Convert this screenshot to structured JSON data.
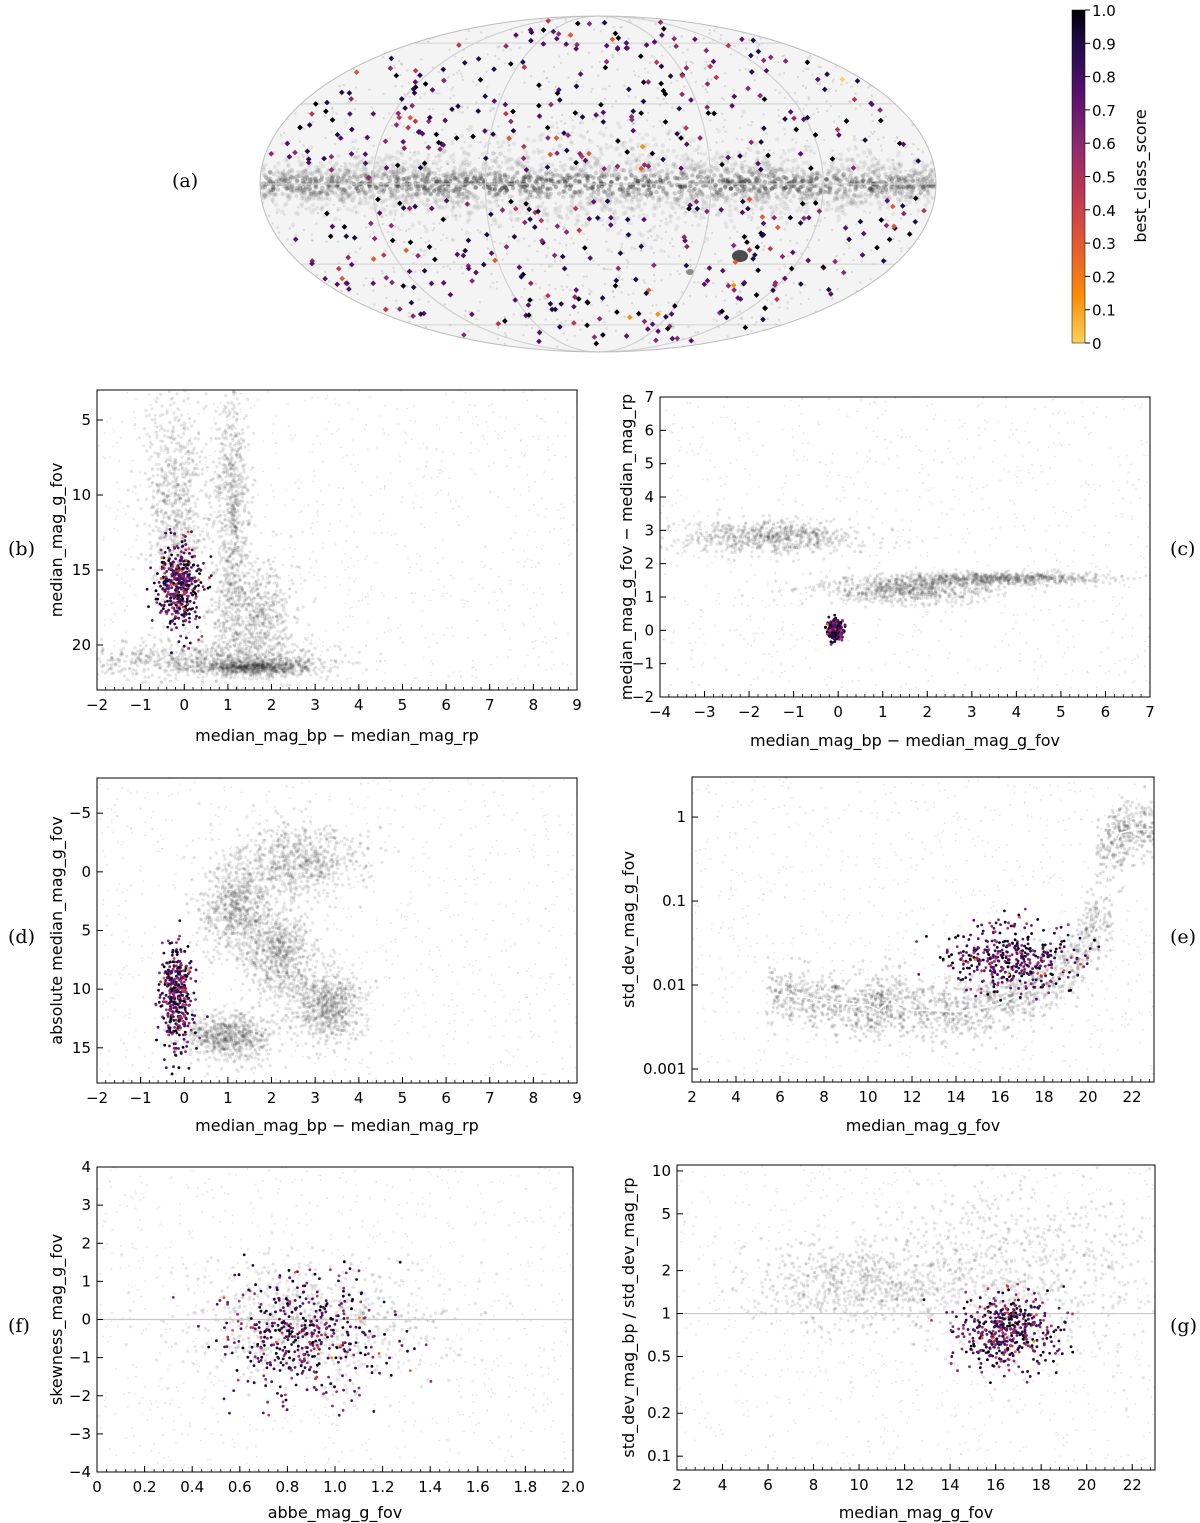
{
  "colors": {
    "background_cloud": "#8a8a8a",
    "gridline": "#bdbdbd",
    "reference_line": "#c8c8c8",
    "trend_line": "#ffffff",
    "colormap": [
      "#fcd25a",
      "#f98e09",
      "#e35932",
      "#bc3754",
      "#8b2a6e",
      "#57106e",
      "#1f0c48",
      "#000004"
    ]
  },
  "chart_data": [
    {
      "id": "a",
      "tag": "(a)",
      "type": "scatter",
      "projection": "mollweide",
      "title": "",
      "colorbar": {
        "label": "best_class_score",
        "range": [
          0,
          1
        ],
        "ticks": [
          "0",
          "0.1",
          "0.2",
          "0.3",
          "0.4",
          "0.5",
          "0.6",
          "0.7",
          "0.8",
          "0.9",
          "1.0"
        ]
      },
      "n_highlight_points": 520,
      "background": "all-sky source density, concentrated along the Galactic plane"
    },
    {
      "id": "b",
      "tag": "(b)",
      "type": "scatter",
      "xlabel": "median_mag_bp − median_mag_rp",
      "ylabel": "median_mag_g_fov",
      "xlim": [
        -2,
        9
      ],
      "ylim": [
        23,
        3
      ],
      "yscale": "linear",
      "xticks": [
        -2,
        -1,
        0,
        1,
        2,
        3,
        4,
        5,
        6,
        7,
        8,
        9
      ],
      "yticks": [
        5,
        10,
        15,
        20
      ],
      "highlight": {
        "x_mean": -0.1,
        "x_sd": 0.25,
        "y_mean": 16.0,
        "y_sd": 1.5,
        "n": 420
      },
      "background_features": [
        {
          "x": -0.2,
          "y": 10.5,
          "sx": 0.35,
          "sy": 3.5
        },
        {
          "x": 1.1,
          "y": 11.5,
          "sx": 0.2,
          "sy": 4.5
        },
        {
          "x": 1.6,
          "y": 18.5,
          "sx": 0.5,
          "sy": 2.0
        },
        {
          "x": 1.7,
          "y": 21.5,
          "sx": 0.7,
          "sy": 0.25
        },
        {
          "x": 0.3,
          "y": 21.0,
          "sx": 1.5,
          "sy": 0.6
        }
      ]
    },
    {
      "id": "c",
      "tag": "(c)",
      "type": "scatter",
      "xlabel": "median_mag_bp − median_mag_g_fov",
      "ylabel": "median_mag_g_fov − median_mag_rp",
      "xlim": [
        -4,
        7
      ],
      "ylim": [
        -2,
        7
      ],
      "yscale": "linear",
      "xticks": [
        -4,
        -3,
        -2,
        -1,
        0,
        1,
        2,
        3,
        4,
        5,
        6,
        7
      ],
      "yticks": [
        -2,
        -1,
        0,
        1,
        2,
        3,
        4,
        5,
        6,
        7
      ],
      "highlight": {
        "x_mean": -0.05,
        "x_sd": 0.08,
        "y_mean": 0.0,
        "y_sd": 0.15,
        "n": 300
      },
      "background_features": [
        {
          "x": -1.5,
          "y": 2.8,
          "sx": 1.0,
          "sy": 0.25
        },
        {
          "x": 1.5,
          "y": 1.2,
          "sx": 1.0,
          "sy": 0.2
        },
        {
          "x": 3.5,
          "y": 1.55,
          "sx": 1.2,
          "sy": 0.1
        }
      ]
    },
    {
      "id": "d",
      "tag": "(d)",
      "type": "scatter",
      "xlabel": "median_mag_bp − median_mag_rp",
      "ylabel": "absolute median_mag_g_fov",
      "xlim": [
        -2,
        9
      ],
      "ylim": [
        18,
        -8
      ],
      "yscale": "linear",
      "xticks": [
        -2,
        -1,
        0,
        1,
        2,
        3,
        4,
        5,
        6,
        7,
        8,
        9
      ],
      "yticks": [
        -5,
        0,
        5,
        10,
        15
      ],
      "highlight": {
        "x_mean": -0.2,
        "x_sd": 0.2,
        "y_mean": 10.5,
        "y_sd": 2.2,
        "n": 380
      },
      "background_features": [
        {
          "x": 2.7,
          "y": -1.0,
          "sx": 0.7,
          "sy": 1.6
        },
        {
          "x": 1.2,
          "y": 3.0,
          "sx": 0.4,
          "sy": 2.0
        },
        {
          "x": 2.2,
          "y": 7.0,
          "sx": 0.4,
          "sy": 2.0
        },
        {
          "x": 3.3,
          "y": 11.5,
          "sx": 0.4,
          "sy": 1.5
        },
        {
          "x": 1.0,
          "y": 14.0,
          "sx": 0.5,
          "sy": 1.0
        }
      ]
    },
    {
      "id": "e",
      "tag": "(e)",
      "type": "scatter",
      "xlabel": "median_mag_g_fov",
      "ylabel": "std_dev_mag_g_fov",
      "xlim": [
        2,
        23
      ],
      "ylim": [
        0.0007,
        3
      ],
      "yscale": "log",
      "xticks": [
        2,
        4,
        6,
        8,
        10,
        12,
        14,
        16,
        18,
        20,
        22
      ],
      "yticks": [
        0.001,
        0.01,
        0.1,
        1
      ],
      "ytick_labels": [
        "0.001",
        "0.01",
        "0.1",
        "1"
      ],
      "highlight": {
        "x_mean": 16.5,
        "x_sd": 1.4,
        "y_mean": 0.02,
        "y_sd_log10": 0.2,
        "n": 420
      },
      "trend_line": {
        "x": [
          6,
          7,
          8,
          9,
          10,
          10.5,
          11,
          12,
          13,
          14,
          15,
          16,
          17,
          18,
          19,
          20,
          20.5,
          21,
          21.5,
          22,
          23
        ],
        "y": [
          0.0075,
          0.0072,
          0.0065,
          0.006,
          0.0058,
          0.005,
          0.0068,
          0.005,
          0.005,
          0.0048,
          0.0052,
          0.006,
          0.008,
          0.011,
          0.016,
          0.03,
          0.06,
          0.35,
          0.65,
          0.7,
          0.72
        ]
      }
    },
    {
      "id": "f",
      "tag": "(f)",
      "type": "scatter",
      "xlabel": "abbe_mag_g_fov",
      "ylabel": "skewness_mag_g_fov",
      "xlim": [
        0,
        2
      ],
      "ylim": [
        -4,
        4
      ],
      "yscale": "linear",
      "xticks": [
        0,
        0.2,
        0.4,
        0.6,
        0.8,
        1,
        1.2,
        1.4,
        1.6,
        1.8,
        2
      ],
      "xtick_labels": [
        "0",
        "0.2",
        "0.4",
        "0.6",
        "0.8",
        "1.0",
        "1.2",
        "1.4",
        "1.6",
        "1.8",
        "2.0"
      ],
      "yticks": [
        -4,
        -3,
        -2,
        -1,
        0,
        1,
        2,
        3,
        4
      ],
      "reference_line_y": 0,
      "highlight": {
        "x_mean": 0.87,
        "x_sd": 0.17,
        "y_mean": -0.35,
        "y_sd": 0.8,
        "n": 460
      },
      "background_features": [
        {
          "x": 0.9,
          "y": -0.1,
          "sx": 0.3,
          "sy": 0.8
        }
      ]
    },
    {
      "id": "g",
      "tag": "(g)",
      "type": "scatter",
      "xlabel": "median_mag_g_fov",
      "ylabel": "std_dev_mag_bp / std_dev_mag_rp",
      "xlim": [
        2,
        23
      ],
      "ylim": [
        0.08,
        11
      ],
      "yscale": "log",
      "xticks": [
        2,
        4,
        6,
        8,
        10,
        12,
        14,
        16,
        18,
        20,
        22
      ],
      "yticks": [
        0.1,
        0.2,
        0.5,
        1,
        2,
        5,
        10
      ],
      "ytick_labels": [
        "0.1",
        "0.2",
        "0.5",
        "1",
        "2",
        "5",
        "10"
      ],
      "reference_line_y": 1,
      "highlight": {
        "x_mean": 16.5,
        "x_sd": 1.1,
        "y_mean": 0.75,
        "y_sd_log10": 0.13,
        "n": 460
      },
      "background_features": [
        {
          "x": 10.0,
          "y": 1.6,
          "sx": 2.5,
          "sy_log10": 0.15
        },
        {
          "x": 17.0,
          "y": 2.0,
          "sx": 3.0,
          "sy_log10": 0.3
        }
      ]
    }
  ]
}
